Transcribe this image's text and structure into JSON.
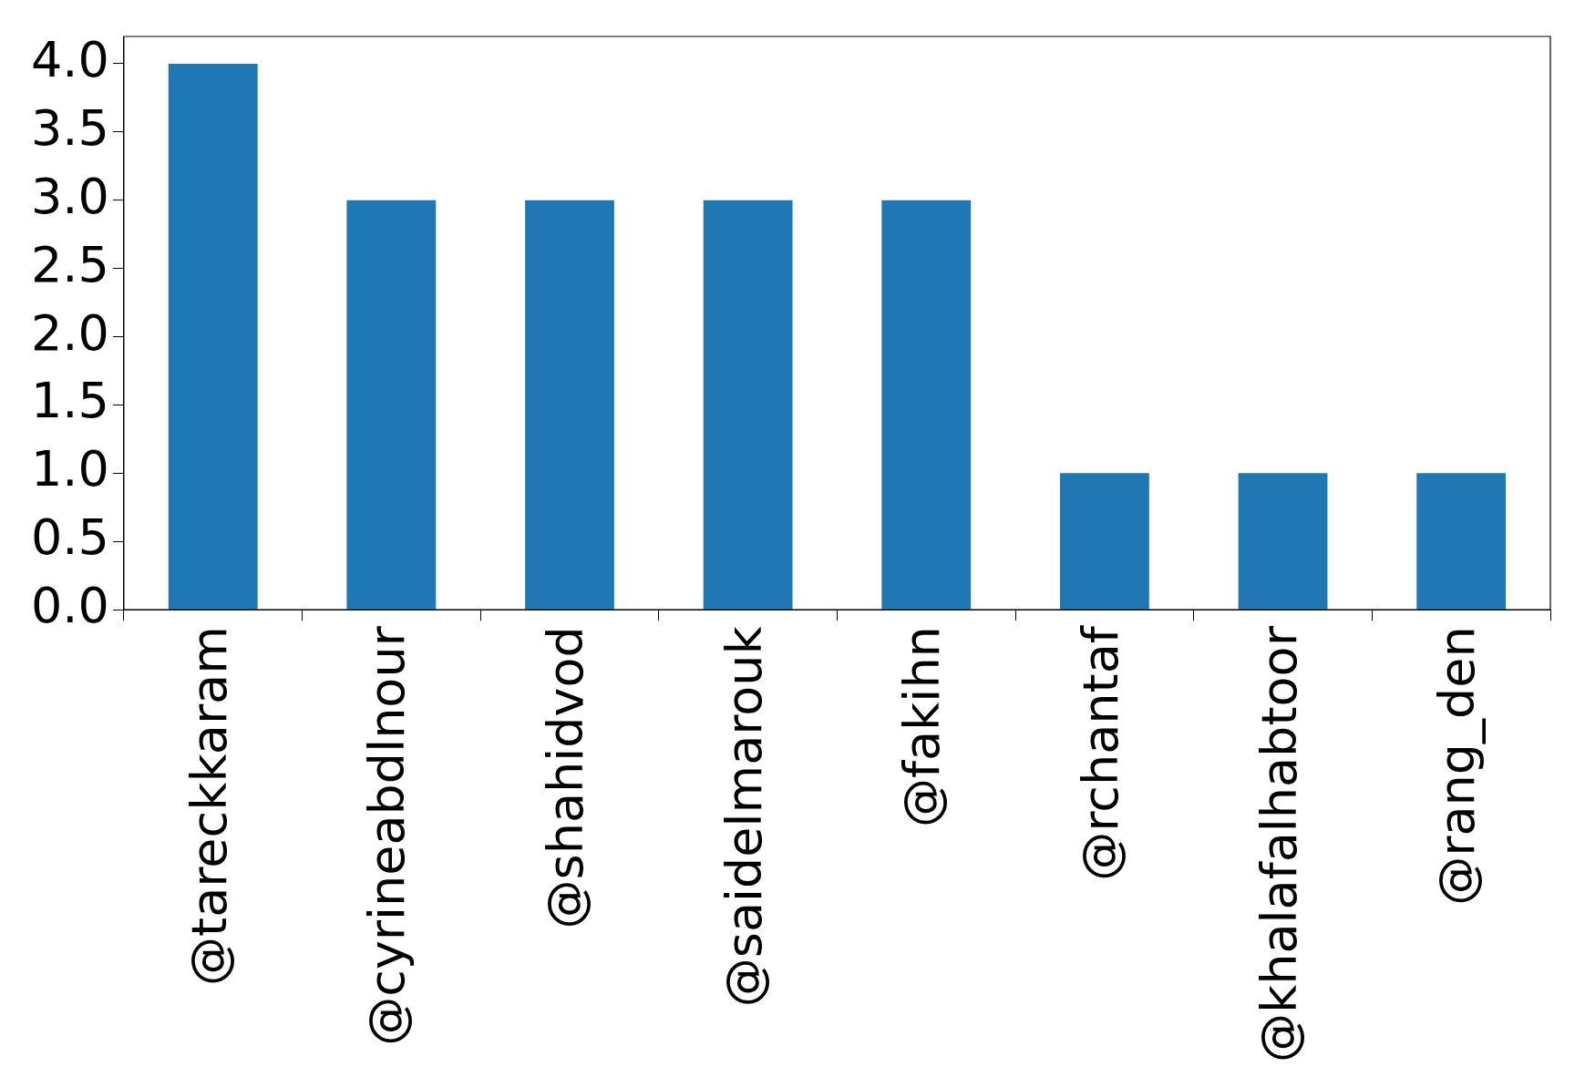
{
  "chart_data": {
    "type": "bar",
    "categories": [
      "@tareckkaram",
      "@cyrineabdlnour",
      "@shahidvod",
      "@saidelmarouk",
      "@fakihn",
      "@rchantaf",
      "@khalafalhabtoor",
      "@rang_den"
    ],
    "values": [
      4,
      3,
      3,
      3,
      3,
      1,
      1,
      1
    ],
    "color": "#1f77b4",
    "ylim": [
      0,
      4.2
    ],
    "yticks": [
      {
        "value": 0,
        "label": "0.0"
      },
      {
        "value": 0.5,
        "label": "0.5"
      },
      {
        "value": 1,
        "label": "1.0"
      },
      {
        "value": 1.5,
        "label": "1.5"
      },
      {
        "value": 2,
        "label": "2.0"
      },
      {
        "value": 2.5,
        "label": "2.5"
      },
      {
        "value": 3,
        "label": "3.0"
      },
      {
        "value": 3.5,
        "label": "3.5"
      },
      {
        "value": 4,
        "label": "4.0"
      }
    ],
    "grid": false,
    "legend": false
  }
}
